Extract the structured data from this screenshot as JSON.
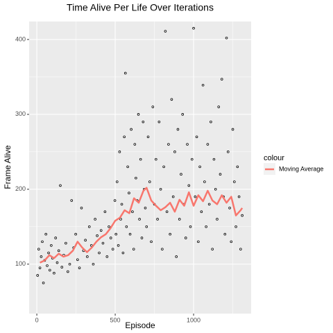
{
  "chart_data": {
    "type": "scatter",
    "title": "Time Alive Per Life Over Iterations",
    "x_label": "Episode",
    "y_label": "Frame Alive",
    "xlim": [
      -49,
      1367
    ],
    "ylim": [
      34,
      424
    ],
    "xticks": [
      0,
      500,
      1000
    ],
    "yticks": [
      100,
      200,
      300,
      400
    ],
    "xminor": [
      250,
      750,
      1250
    ],
    "yminor": [
      150,
      250,
      350
    ],
    "grid": true,
    "points": {
      "color": "#000000",
      "x": [
        5,
        12,
        20,
        28,
        35,
        42,
        50,
        58,
        66,
        75,
        83,
        92,
        100,
        110,
        120,
        130,
        140,
        150,
        160,
        172,
        185,
        198,
        210,
        222,
        235,
        248,
        260,
        272,
        285,
        298,
        310,
        322,
        335,
        348,
        360,
        372,
        385,
        398,
        410,
        422,
        435,
        448,
        460,
        472,
        485,
        498,
        505,
        512,
        520,
        528,
        535,
        542,
        550,
        558,
        565,
        572,
        580,
        588,
        595,
        602,
        610,
        618,
        625,
        632,
        640,
        648,
        655,
        662,
        670,
        678,
        685,
        692,
        700,
        710,
        720,
        730,
        740,
        750,
        760,
        770,
        780,
        790,
        800,
        810,
        820,
        830,
        840,
        850,
        860,
        870,
        880,
        890,
        900,
        910,
        920,
        930,
        940,
        950,
        960,
        970,
        980,
        990,
        1000,
        1010,
        1020,
        1030,
        1040,
        1050,
        1060,
        1070,
        1080,
        1090,
        1100,
        1110,
        1120,
        1130,
        1140,
        1150,
        1160,
        1170,
        1180,
        1190,
        1200,
        1210,
        1220,
        1230,
        1240,
        1250,
        1260,
        1270,
        1280,
        1290,
        1300,
        1310
      ],
      "y": [
        85,
        120,
        95,
        110,
        130,
        75,
        105,
        140,
        98,
        115,
        92,
        125,
        108,
        88,
        135,
        102,
        118,
        205,
        96,
        112,
        128,
        90,
        100,
        185,
        122,
        140,
        106,
        95,
        175,
        118,
        132,
        110,
        150,
        125,
        100,
        160,
        138,
        115,
        145,
        128,
        170,
        110,
        150,
        135,
        120,
        185,
        140,
        210,
        125,
        250,
        160,
        180,
        115,
        270,
        355,
        150,
        230,
        195,
        140,
        280,
        170,
        120,
        260,
        215,
        185,
        300,
        160,
        240,
        135,
        290,
        200,
        175,
        150,
        270,
        210,
        130,
        310,
        180,
        240,
        160,
        290,
        200,
        120,
        230,
        411,
        170,
        260,
        140,
        320,
        190,
        250,
        110,
        280,
        160,
        220,
        300,
        180,
        135,
        260,
        205,
        150,
        240,
        415,
        190,
        270,
        130,
        230,
        170,
        339,
        210,
        150,
        260,
        180,
        290,
        120,
        240,
        200,
        160,
        310,
        220,
        347,
        190,
        140,
        402,
        250,
        175,
        130,
        280,
        210,
        150,
        230,
        190,
        120,
        165
      ]
    },
    "series": [
      {
        "name": "Moving Average",
        "color": "#F8766D",
        "x": [
          20,
          50,
          80,
          110,
          140,
          170,
          200,
          230,
          260,
          290,
          320,
          350,
          380,
          410,
          440,
          470,
          500,
          530,
          560,
          590,
          620,
          650,
          680,
          700,
          730,
          760,
          790,
          820,
          850,
          880,
          910,
          940,
          970,
          1000,
          1030,
          1060,
          1090,
          1120,
          1150,
          1180,
          1210,
          1240,
          1270,
          1300,
          1310
        ],
        "values": [
          102,
          105,
          112,
          108,
          114,
          110,
          112,
          118,
          130,
          122,
          116,
          122,
          130,
          136,
          140,
          148,
          158,
          162,
          172,
          168,
          188,
          182,
          198,
          202,
          185,
          178,
          172,
          176,
          182,
          170,
          186,
          178,
          196,
          178,
          192,
          184,
          198,
          185,
          180,
          192,
          182,
          190,
          165,
          172,
          175
        ]
      }
    ],
    "legend_title": "colour",
    "legend_position": "right"
  }
}
